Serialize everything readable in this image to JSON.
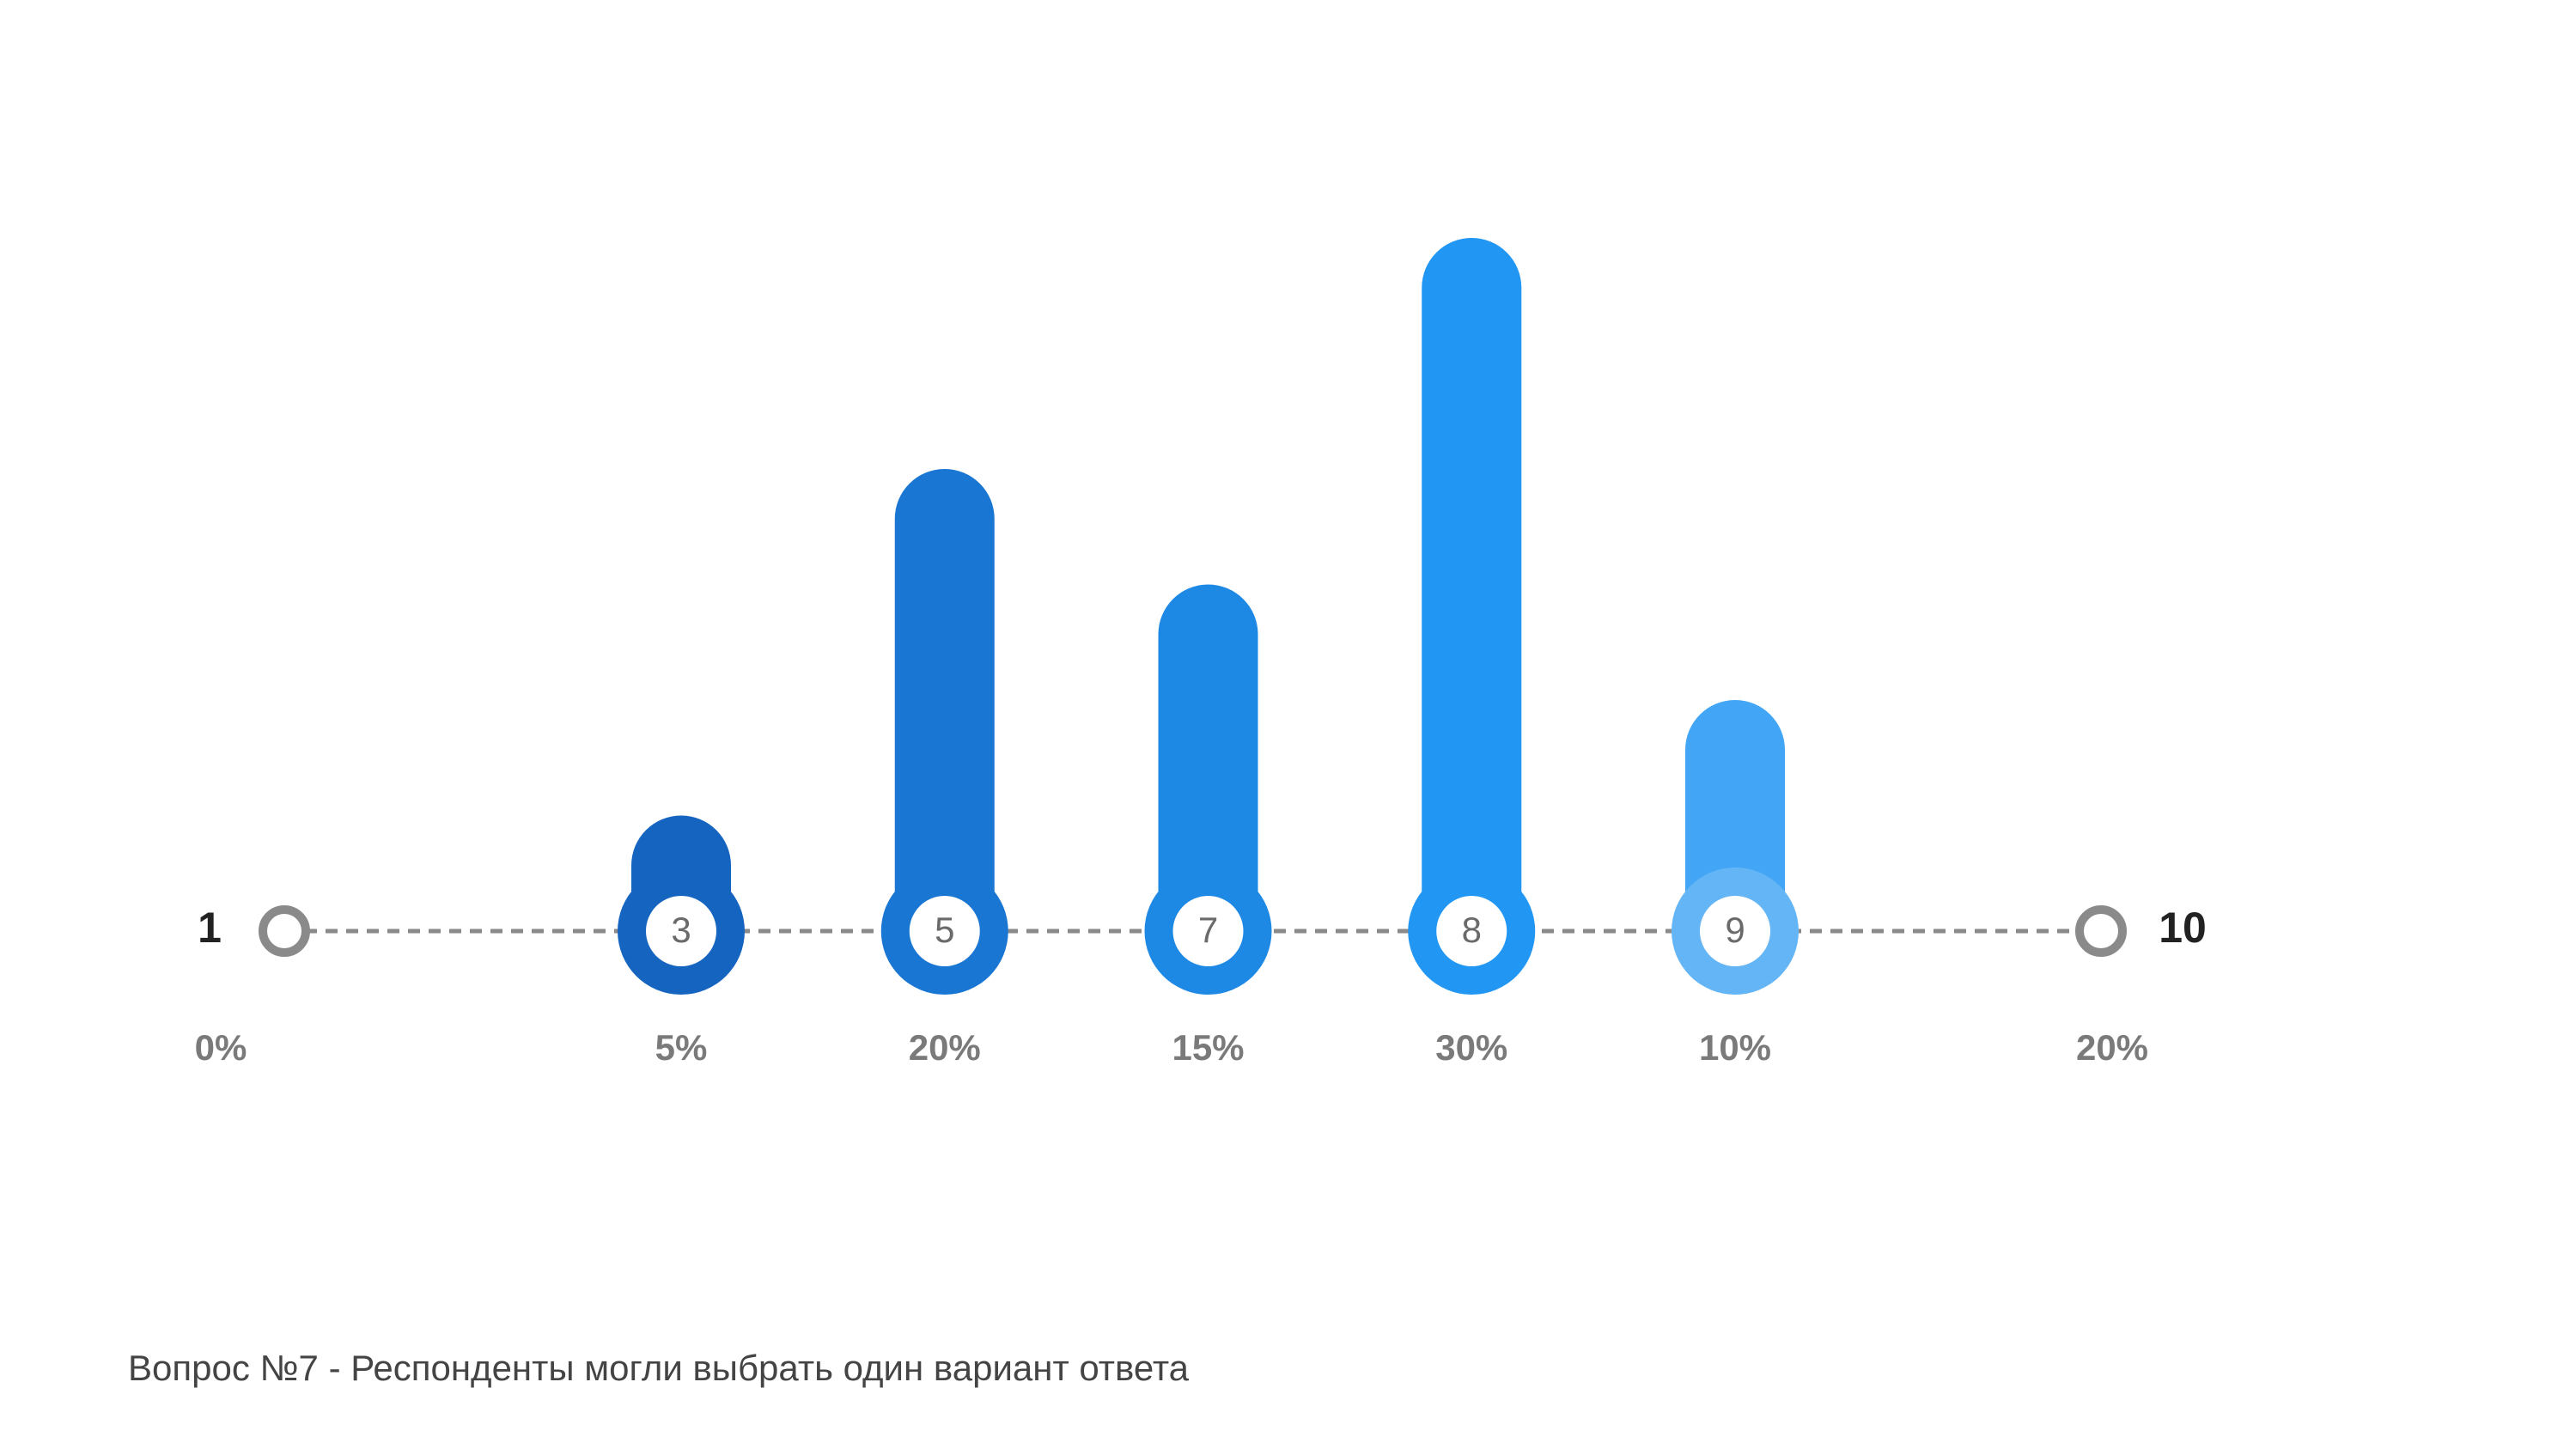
{
  "chart_data": {
    "type": "bar",
    "categories": [
      "3",
      "5",
      "7",
      "8",
      "9"
    ],
    "values": [
      5,
      20,
      15,
      30,
      10
    ],
    "value_labels": [
      "5%",
      "20%",
      "15%",
      "30%",
      "10%"
    ],
    "colors": [
      "#1565c0",
      "#1976d2",
      "#1e88e5",
      "#2196f3",
      "#42a5f5"
    ],
    "marker_colors": [
      "#1565c0",
      "#1976d2",
      "#1e88e5",
      "#2196f3",
      "#64b5f6"
    ],
    "scale_ends": {
      "labels": [
        "1",
        "10"
      ],
      "values": [
        0,
        20
      ],
      "value_labels": [
        "0%",
        "20%"
      ]
    },
    "caption": "Вопрос №7 - Респонденты могли выбрать один вариант ответа"
  }
}
